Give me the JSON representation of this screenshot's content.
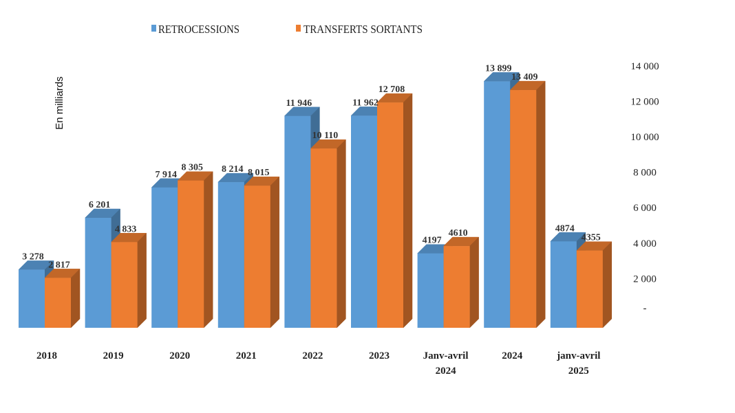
{
  "chart_data": {
    "type": "bar",
    "title": "",
    "xlabel": "",
    "ylabel": "En milliards",
    "ylim": [
      0,
      14000
    ],
    "y_ticks": [
      0,
      2000,
      4000,
      6000,
      8000,
      10000,
      12000,
      14000
    ],
    "y_tick_labels": [
      "-",
      "2 000",
      "4 000",
      "6 000",
      "8 000",
      "10 000",
      "12 000",
      "14 000"
    ],
    "legend_position": "top-center",
    "categories": [
      "2018",
      "2019",
      "2020",
      "2021",
      "2022",
      "2023",
      "Janv-avril\n2024",
      "2024",
      "janv-avril\n2025"
    ],
    "series": [
      {
        "name": "RETROCESSIONS",
        "color": "#5b9bd5",
        "values": [
          3278,
          6201,
          7914,
          8214,
          11946,
          11962,
          4197,
          13899,
          4874
        ],
        "labels": [
          "3 278",
          "6 201",
          "7 914",
          "8 214",
          "11 946",
          "11 962",
          "4197",
          "13 899",
          "4874"
        ]
      },
      {
        "name": "TRANSFERTS SORTANTS",
        "color": "#ed7d31",
        "values": [
          2817,
          4833,
          8305,
          8015,
          10110,
          12708,
          4610,
          13409,
          4355
        ],
        "labels": [
          "2 817",
          "4 833",
          "8 305",
          "8 015",
          "10 110",
          "12 708",
          "4610",
          "13 409",
          "4355"
        ]
      }
    ]
  }
}
